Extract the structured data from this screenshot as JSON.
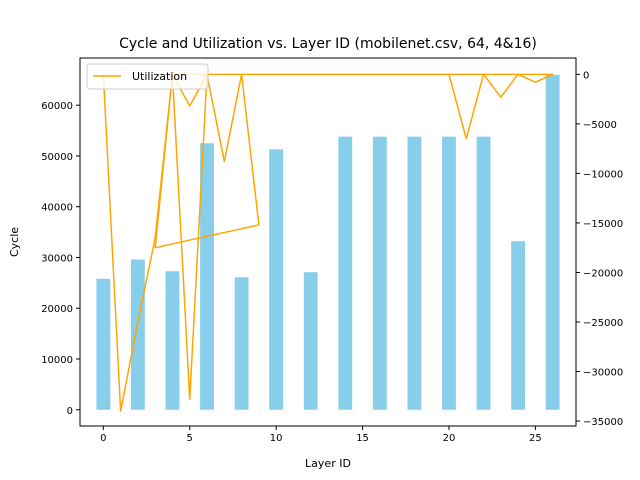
{
  "chart_data": {
    "type": "bar",
    "title": "Cycle and Utilization vs. Layer ID (mobilenet.csv, 64, 4&16)",
    "xlabel": "Layer ID",
    "ylabel": "Cycle",
    "xlim": [
      -1.35,
      27.35
    ],
    "ylim": [
      -3200,
      69300
    ],
    "y2lim": [
      -35500,
      1650
    ],
    "xticks": [
      0,
      5,
      10,
      15,
      20,
      25
    ],
    "yticks": [
      0,
      10000,
      20000,
      30000,
      40000,
      50000,
      60000
    ],
    "y2ticks": [
      0,
      -5000,
      -10000,
      -15000,
      -20000,
      -25000,
      -30000,
      -35000
    ],
    "grid": false,
    "legend_position": "top-left",
    "bar_color": "#87ceeb",
    "line_color": "#ffa500",
    "bar_width": 0.8,
    "bars": {
      "x": [
        0,
        2,
        4,
        6,
        8,
        10,
        12,
        14,
        16,
        18,
        20,
        22,
        24,
        26
      ],
      "values": [
        25800,
        29600,
        27300,
        52500,
        26100,
        51300,
        27100,
        53800,
        53800,
        53800,
        53800,
        53800,
        33200,
        66000
      ]
    },
    "series": [
      {
        "name": "Utilization",
        "axis": "right",
        "x": [
          0,
          1,
          2,
          3,
          4,
          5,
          6,
          7,
          8,
          9,
          10,
          11,
          12,
          13,
          14,
          15,
          16,
          17,
          18,
          19,
          20,
          21,
          22,
          23,
          24,
          25,
          26,
          4,
          5,
          6,
          7,
          8,
          9,
          3,
          4
        ],
        "values": [
          0,
          -34000,
          -25000,
          -16500,
          0,
          -32800,
          0,
          0,
          0,
          0,
          0,
          0,
          0,
          0,
          0,
          0,
          0,
          0,
          0,
          0,
          0,
          -6500,
          0,
          -2300,
          0,
          -800,
          0,
          0,
          -3200,
          0,
          -8800,
          0,
          -15200,
          -17500,
          0
        ]
      }
    ]
  }
}
